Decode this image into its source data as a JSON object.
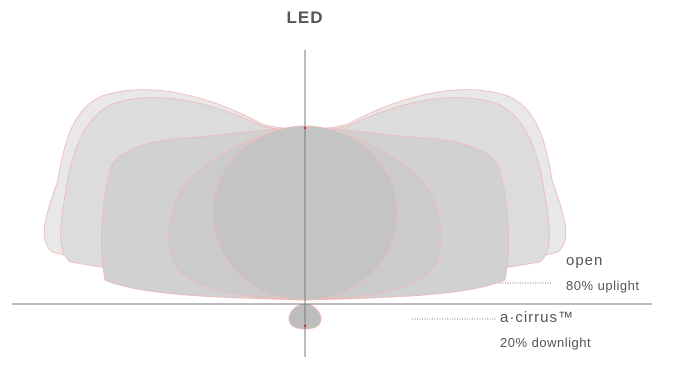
{
  "title": "LED",
  "labels": {
    "open": "open",
    "open_sub": "80% uplight",
    "acirrus": "a·cirrus™",
    "acirrus_sub": "20% downlight"
  },
  "colors": {
    "background": "#ffffff",
    "outer_lobe": "#e8e8e8",
    "middle_lobe": "#dcdcdc",
    "inner_lobe": "#d1d1d1",
    "center_disc": "#c6c6c6",
    "outline": "#f0b7b7",
    "axis_line": "#7a7a7a",
    "text": "#555555"
  }
}
